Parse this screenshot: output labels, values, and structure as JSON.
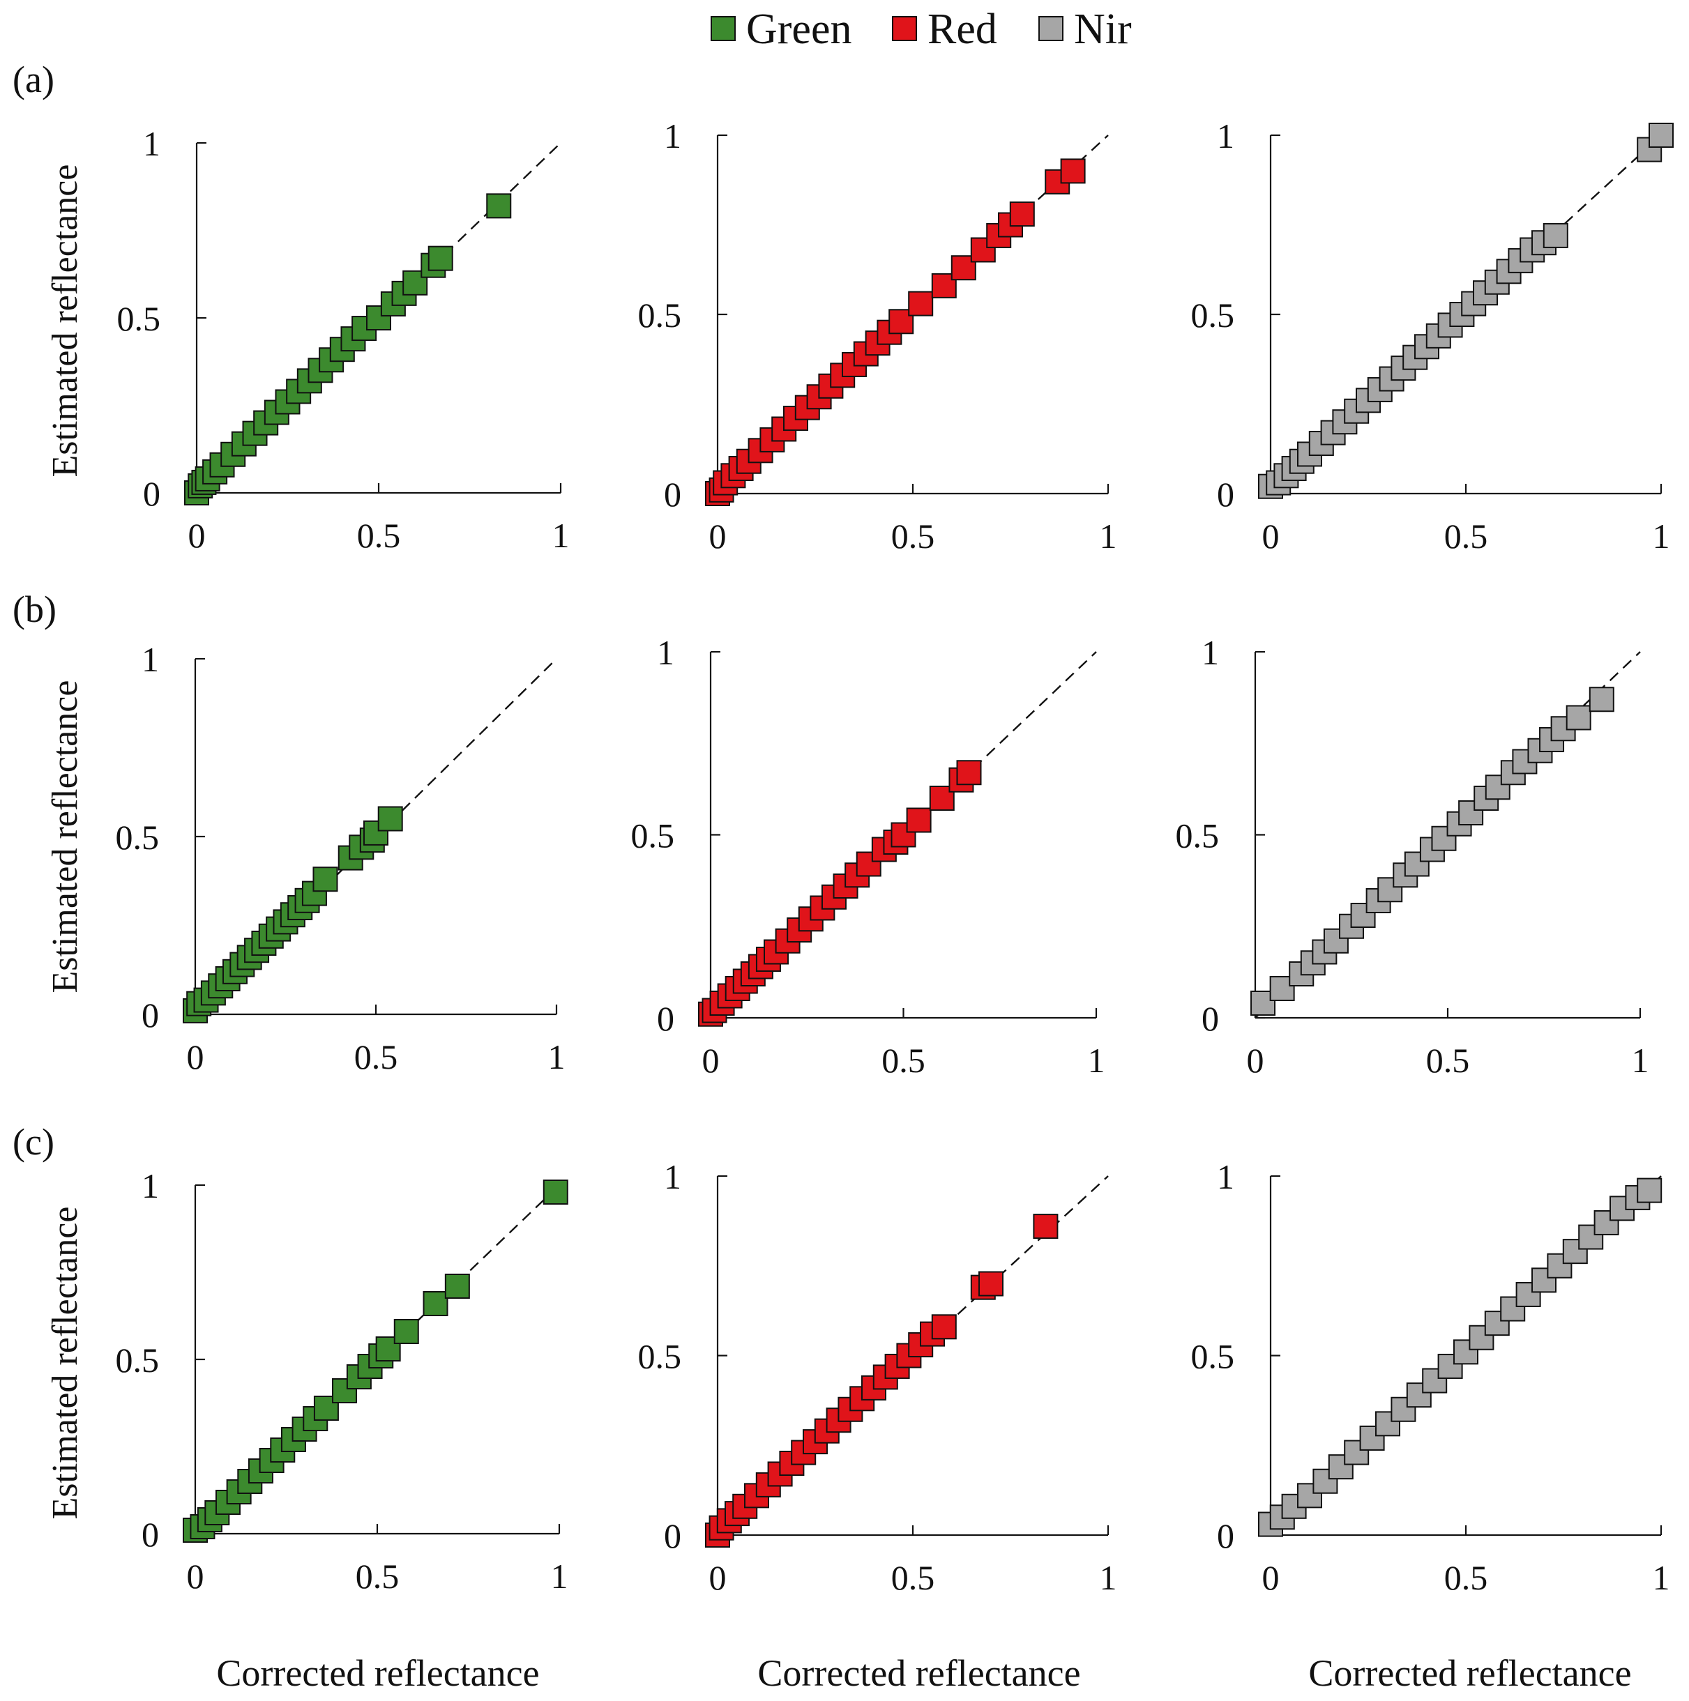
{
  "legend": [
    {
      "label": "Green",
      "color": "#3c8a2e"
    },
    {
      "label": "Red",
      "color": "#e0141a"
    },
    {
      "label": "Nir",
      "color": "#a6a6a6"
    }
  ],
  "row_labels": [
    "(a)",
    "(b)",
    "(c)"
  ],
  "y_axis_label": "Estimated reflectance",
  "x_axis_label": "Corrected reflectance",
  "chart_data": [
    {
      "type": "scatter",
      "panel": "(a)",
      "band": "Green",
      "xlim": [
        0,
        1
      ],
      "ylim": [
        0,
        1
      ],
      "xticks": [
        "0",
        "0.5",
        "1"
      ],
      "yticks": [
        "0",
        "0.5",
        "1"
      ],
      "reference_line": "1:1",
      "x": [
        0.0,
        0.01,
        0.02,
        0.03,
        0.05,
        0.07,
        0.1,
        0.13,
        0.16,
        0.19,
        0.22,
        0.25,
        0.28,
        0.31,
        0.34,
        0.37,
        0.4,
        0.43,
        0.46,
        0.5,
        0.54,
        0.57,
        0.6,
        0.65,
        0.67,
        0.83
      ],
      "y": [
        0.0,
        0.02,
        0.03,
        0.04,
        0.06,
        0.08,
        0.11,
        0.14,
        0.17,
        0.2,
        0.23,
        0.26,
        0.29,
        0.32,
        0.35,
        0.38,
        0.41,
        0.44,
        0.47,
        0.5,
        0.54,
        0.57,
        0.6,
        0.65,
        0.67,
        0.82
      ]
    },
    {
      "type": "scatter",
      "panel": "(a)",
      "band": "Red",
      "xlim": [
        0,
        1
      ],
      "ylim": [
        0,
        1
      ],
      "xticks": [
        "0",
        "0.5",
        "1"
      ],
      "yticks": [
        "0",
        "0.5",
        "1"
      ],
      "reference_line": "1:1",
      "x": [
        0.0,
        0.01,
        0.02,
        0.04,
        0.06,
        0.08,
        0.11,
        0.14,
        0.17,
        0.2,
        0.23,
        0.26,
        0.29,
        0.32,
        0.35,
        0.38,
        0.41,
        0.44,
        0.47,
        0.52,
        0.58,
        0.63,
        0.68,
        0.72,
        0.75,
        0.78,
        0.87,
        0.91
      ],
      "y": [
        0.0,
        0.01,
        0.03,
        0.05,
        0.07,
        0.09,
        0.12,
        0.15,
        0.18,
        0.21,
        0.24,
        0.27,
        0.3,
        0.33,
        0.36,
        0.39,
        0.42,
        0.45,
        0.48,
        0.53,
        0.58,
        0.63,
        0.68,
        0.72,
        0.75,
        0.78,
        0.87,
        0.9
      ]
    },
    {
      "type": "scatter",
      "panel": "(a)",
      "band": "Nir",
      "xlim": [
        0,
        1
      ],
      "ylim": [
        0,
        1
      ],
      "xticks": [
        "0",
        "0.5",
        "1"
      ],
      "yticks": [
        "0",
        "0.5",
        "1"
      ],
      "reference_line": "1:1",
      "x": [
        0.0,
        0.02,
        0.04,
        0.06,
        0.08,
        0.1,
        0.13,
        0.16,
        0.19,
        0.22,
        0.25,
        0.28,
        0.31,
        0.34,
        0.37,
        0.4,
        0.43,
        0.46,
        0.49,
        0.52,
        0.55,
        0.58,
        0.61,
        0.64,
        0.67,
        0.7,
        0.73,
        0.97,
        1.0
      ],
      "y": [
        0.02,
        0.03,
        0.05,
        0.07,
        0.09,
        0.11,
        0.14,
        0.17,
        0.2,
        0.23,
        0.26,
        0.29,
        0.32,
        0.35,
        0.38,
        0.41,
        0.44,
        0.47,
        0.5,
        0.53,
        0.56,
        0.59,
        0.62,
        0.65,
        0.68,
        0.7,
        0.72,
        0.96,
        1.0
      ]
    },
    {
      "type": "scatter",
      "panel": "(b)",
      "band": "Green",
      "xlim": [
        0,
        1
      ],
      "ylim": [
        0,
        1
      ],
      "xticks": [
        "0",
        "0.5",
        "1"
      ],
      "yticks": [
        "0",
        "0.5",
        "1"
      ],
      "reference_line": "1:1",
      "x": [
        0.0,
        0.01,
        0.03,
        0.05,
        0.07,
        0.09,
        0.11,
        0.13,
        0.15,
        0.17,
        0.19,
        0.21,
        0.23,
        0.25,
        0.27,
        0.29,
        0.31,
        0.33,
        0.36,
        0.43,
        0.46,
        0.49,
        0.5,
        0.54
      ],
      "y": [
        0.01,
        0.03,
        0.04,
        0.06,
        0.08,
        0.1,
        0.12,
        0.14,
        0.16,
        0.18,
        0.2,
        0.22,
        0.24,
        0.26,
        0.28,
        0.3,
        0.32,
        0.34,
        0.38,
        0.44,
        0.47,
        0.49,
        0.51,
        0.55
      ]
    },
    {
      "type": "scatter",
      "panel": "(b)",
      "band": "Red",
      "xlim": [
        0,
        1
      ],
      "ylim": [
        0,
        1
      ],
      "xticks": [
        "0",
        "0.5",
        "1"
      ],
      "yticks": [
        "0",
        "0.5",
        "1"
      ],
      "reference_line": "1:1",
      "x": [
        0.0,
        0.01,
        0.03,
        0.05,
        0.07,
        0.09,
        0.11,
        0.13,
        0.15,
        0.17,
        0.2,
        0.23,
        0.26,
        0.29,
        0.32,
        0.35,
        0.38,
        0.41,
        0.45,
        0.48,
        0.5,
        0.54,
        0.6,
        0.65,
        0.67
      ],
      "y": [
        0.01,
        0.02,
        0.04,
        0.06,
        0.08,
        0.1,
        0.12,
        0.14,
        0.16,
        0.18,
        0.21,
        0.24,
        0.27,
        0.3,
        0.33,
        0.36,
        0.39,
        0.42,
        0.46,
        0.48,
        0.5,
        0.54,
        0.6,
        0.65,
        0.67
      ]
    },
    {
      "type": "scatter",
      "panel": "(b)",
      "band": "Nir",
      "xlim": [
        0,
        1
      ],
      "ylim": [
        0,
        1
      ],
      "xticks": [
        "0",
        "0.5",
        "1"
      ],
      "yticks": [
        "0",
        "0.5",
        "1"
      ],
      "reference_line": "1:1",
      "x": [
        0.02,
        0.07,
        0.12,
        0.15,
        0.18,
        0.21,
        0.25,
        0.28,
        0.32,
        0.35,
        0.39,
        0.42,
        0.46,
        0.49,
        0.53,
        0.56,
        0.6,
        0.63,
        0.67,
        0.7,
        0.74,
        0.77,
        0.8,
        0.84,
        0.9
      ],
      "y": [
        0.04,
        0.08,
        0.12,
        0.15,
        0.18,
        0.21,
        0.25,
        0.28,
        0.32,
        0.35,
        0.39,
        0.42,
        0.46,
        0.49,
        0.53,
        0.56,
        0.6,
        0.63,
        0.67,
        0.7,
        0.73,
        0.76,
        0.79,
        0.82,
        0.87
      ]
    },
    {
      "type": "scatter",
      "panel": "(c)",
      "band": "Green",
      "xlim": [
        0,
        1
      ],
      "ylim": [
        0,
        1
      ],
      "xticks": [
        "0",
        "0.5",
        "1"
      ],
      "yticks": [
        "0",
        "0.5",
        "1"
      ],
      "reference_line": "1:1",
      "x": [
        0.0,
        0.02,
        0.04,
        0.06,
        0.09,
        0.12,
        0.15,
        0.18,
        0.21,
        0.24,
        0.27,
        0.3,
        0.33,
        0.36,
        0.41,
        0.45,
        0.48,
        0.51,
        0.53,
        0.58,
        0.66,
        0.72,
        0.99
      ],
      "y": [
        0.01,
        0.02,
        0.04,
        0.06,
        0.09,
        0.12,
        0.15,
        0.18,
        0.21,
        0.24,
        0.27,
        0.3,
        0.33,
        0.36,
        0.41,
        0.45,
        0.48,
        0.51,
        0.53,
        0.58,
        0.66,
        0.71,
        0.98
      ]
    },
    {
      "type": "scatter",
      "panel": "(c)",
      "band": "Red",
      "xlim": [
        0,
        1
      ],
      "ylim": [
        0,
        1
      ],
      "xticks": [
        "0",
        "0.5",
        "1"
      ],
      "yticks": [
        "0",
        "0.5",
        "1"
      ],
      "reference_line": "1:1",
      "x": [
        0.0,
        0.01,
        0.03,
        0.05,
        0.07,
        0.1,
        0.13,
        0.16,
        0.19,
        0.22,
        0.25,
        0.28,
        0.31,
        0.34,
        0.37,
        0.4,
        0.43,
        0.46,
        0.49,
        0.52,
        0.55,
        0.58,
        0.68,
        0.7,
        0.84
      ],
      "y": [
        0.0,
        0.02,
        0.04,
        0.06,
        0.08,
        0.11,
        0.14,
        0.17,
        0.2,
        0.23,
        0.26,
        0.29,
        0.32,
        0.35,
        0.38,
        0.41,
        0.44,
        0.47,
        0.5,
        0.53,
        0.56,
        0.58,
        0.69,
        0.7,
        0.86
      ]
    },
    {
      "type": "scatter",
      "panel": "(c)",
      "band": "Nir",
      "xlim": [
        0,
        1
      ],
      "ylim": [
        0,
        1
      ],
      "xticks": [
        "0",
        "0.5",
        "1"
      ],
      "yticks": [
        "0",
        "0.5",
        "1"
      ],
      "reference_line": "1:1",
      "x": [
        0.0,
        0.03,
        0.06,
        0.1,
        0.14,
        0.18,
        0.22,
        0.26,
        0.3,
        0.34,
        0.38,
        0.42,
        0.46,
        0.5,
        0.54,
        0.58,
        0.62,
        0.66,
        0.7,
        0.74,
        0.78,
        0.82,
        0.86,
        0.9,
        0.94,
        0.97
      ],
      "y": [
        0.03,
        0.05,
        0.08,
        0.11,
        0.15,
        0.19,
        0.23,
        0.27,
        0.31,
        0.35,
        0.39,
        0.43,
        0.47,
        0.51,
        0.55,
        0.59,
        0.63,
        0.67,
        0.71,
        0.75,
        0.79,
        0.83,
        0.87,
        0.91,
        0.94,
        0.96
      ]
    }
  ]
}
